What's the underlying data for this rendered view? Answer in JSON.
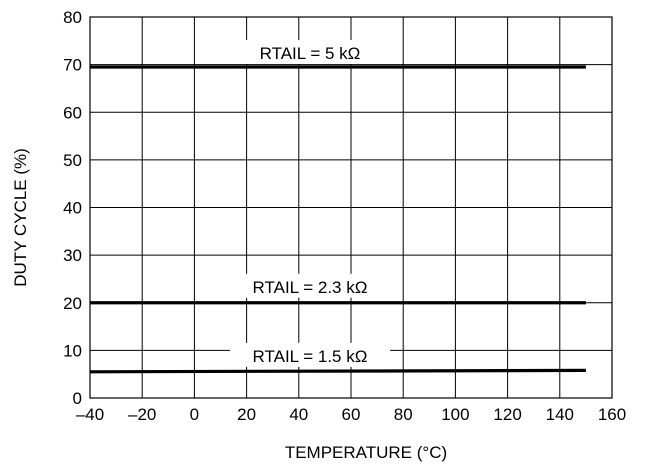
{
  "chart_data": {
    "type": "line",
    "title": "",
    "xlabel": "TEMPERATURE (°C)",
    "ylabel": "DUTY CYCLE (%)",
    "xlim": [
      -40,
      160
    ],
    "ylim": [
      0,
      80
    ],
    "xticks": [
      -40,
      -20,
      0,
      20,
      40,
      60,
      80,
      100,
      120,
      140,
      160
    ],
    "xtick_labels": [
      "–40",
      "–20",
      "0",
      "20",
      "40",
      "60",
      "80",
      "100",
      "120",
      "140",
      "160"
    ],
    "yticks": [
      0,
      10,
      20,
      30,
      40,
      50,
      60,
      70,
      80
    ],
    "ytick_labels": [
      "0",
      "10",
      "20",
      "30",
      "40",
      "50",
      "60",
      "70",
      "80"
    ],
    "grid": true,
    "legend": "none",
    "series": [
      {
        "name": "RTAIL = 5 kΩ",
        "x": [
          -40,
          150
        ],
        "y": [
          69.5,
          69.5
        ]
      },
      {
        "name": "RTAIL = 2.3 kΩ",
        "x": [
          -40,
          150
        ],
        "y": [
          20,
          20
        ]
      },
      {
        "name": "RTAIL = 1.5 kΩ",
        "x": [
          -40,
          150
        ],
        "y": [
          5.5,
          5.8
        ]
      }
    ]
  }
}
